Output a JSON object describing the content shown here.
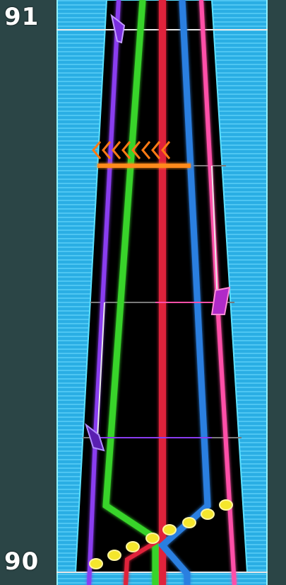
{
  "chart_view": {
    "measure_top": "91",
    "measure_bottom": "90"
  },
  "colors": {
    "background": "#2b4546",
    "highway_cyan": "#2fb4e8",
    "lane_green": "#39d42a",
    "lane_red": "#e0243a",
    "lane_blue": "#2c7fe0",
    "lane_purple": "#8a3cf0",
    "lane_pink": "#ff4fa8",
    "wall_white": "#e8e8e8",
    "note_yellow": "#f4e62c",
    "slam_orange": "#ff8a1e"
  }
}
